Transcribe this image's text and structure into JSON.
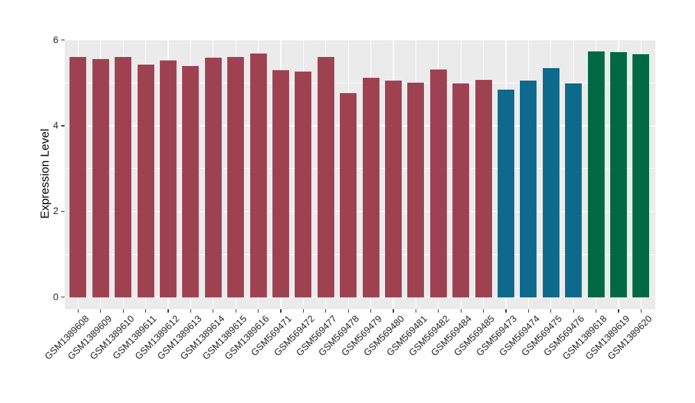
{
  "chart_data": {
    "type": "bar",
    "title": "",
    "xlabel": "",
    "ylabel": "Expression Level",
    "ylim": [
      0,
      6
    ],
    "yticks": [
      0,
      2,
      4,
      6
    ],
    "yticks_minor": [
      1,
      3,
      5
    ],
    "grid": "on",
    "legend": "none",
    "panel_background": "#EBEBEB",
    "gridline_color": "#FFFFFF",
    "categories": [
      "GSM1389608",
      "GSM1389609",
      "GSM1389610",
      "GSM1389611",
      "GSM1389612",
      "GSM1389613",
      "GSM1389614",
      "GSM1389615",
      "GSM1389616",
      "GSM569471",
      "GSM569472",
      "GSM569477",
      "GSM569478",
      "GSM569479",
      "GSM569480",
      "GSM569481",
      "GSM569482",
      "GSM569484",
      "GSM569485",
      "GSM569473",
      "GSM569474",
      "GSM569475",
      "GSM569476",
      "GSM1389618",
      "GSM1389619",
      "GSM1389620"
    ],
    "values": [
      5.61,
      5.55,
      5.6,
      5.43,
      5.52,
      5.4,
      5.59,
      5.61,
      5.69,
      5.3,
      5.26,
      5.6,
      4.76,
      5.12,
      5.05,
      5.0,
      5.31,
      4.99,
      5.07,
      4.84,
      5.05,
      5.35,
      4.98,
      5.74,
      5.72,
      5.67
    ],
    "groups": [
      "g1",
      "g1",
      "g1",
      "g1",
      "g1",
      "g1",
      "g1",
      "g1",
      "g1",
      "g1",
      "g1",
      "g1",
      "g1",
      "g1",
      "g1",
      "g1",
      "g1",
      "g1",
      "g1",
      "g2",
      "g2",
      "g2",
      "g2",
      "g3",
      "g3",
      "g3"
    ],
    "group_colors": {
      "g1": "#9E4252",
      "g2": "#0E6A8C",
      "g3": "#006944"
    }
  }
}
